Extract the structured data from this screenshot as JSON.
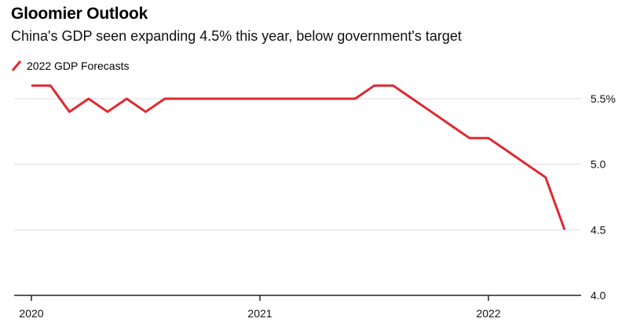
{
  "title": "Gloomier Outlook",
  "subtitle": "China's GDP seen expanding 4.5% this year, below government's target",
  "colors": {
    "series": "#e0282e",
    "grid": "#dddddd",
    "axis": "#222222"
  },
  "chart_data": {
    "type": "line",
    "series": [
      {
        "name": "2022 GDP Forecasts",
        "points": [
          [
            "2020-01",
            5.6
          ],
          [
            "2020-02",
            5.6
          ],
          [
            "2020-03",
            5.4
          ],
          [
            "2020-04",
            5.5
          ],
          [
            "2020-05",
            5.4
          ],
          [
            "2020-06",
            5.5
          ],
          [
            "2020-07",
            5.4
          ],
          [
            "2020-08",
            5.5
          ],
          [
            "2020-09",
            5.5
          ],
          [
            "2020-10",
            5.5
          ],
          [
            "2020-11",
            5.5
          ],
          [
            "2020-12",
            5.5
          ],
          [
            "2021-01",
            5.5
          ],
          [
            "2021-02",
            5.5
          ],
          [
            "2021-03",
            5.5
          ],
          [
            "2021-04",
            5.5
          ],
          [
            "2021-05",
            5.5
          ],
          [
            "2021-06",
            5.5
          ],
          [
            "2021-07",
            5.6
          ],
          [
            "2021-08",
            5.6
          ],
          [
            "2021-09",
            5.5
          ],
          [
            "2021-10",
            5.4
          ],
          [
            "2021-11",
            5.3
          ],
          [
            "2021-12",
            5.2
          ],
          [
            "2022-01",
            5.2
          ],
          [
            "2022-02",
            5.1
          ],
          [
            "2022-03",
            5.0
          ],
          [
            "2022-04",
            4.9
          ],
          [
            "2022-05",
            4.5
          ]
        ]
      }
    ],
    "y_ticks": [
      "5.5%",
      "5.0",
      "4.5",
      "4.0"
    ],
    "y_tick_values": [
      5.5,
      5.0,
      4.5,
      4.0
    ],
    "x_ticks": [
      "2020",
      "2021",
      "2022"
    ],
    "x_tick_values": [
      "2020-01",
      "2021-01",
      "2022-01"
    ],
    "ylim": [
      4.0,
      5.6
    ],
    "grid": true,
    "legend_position": "top-left"
  }
}
